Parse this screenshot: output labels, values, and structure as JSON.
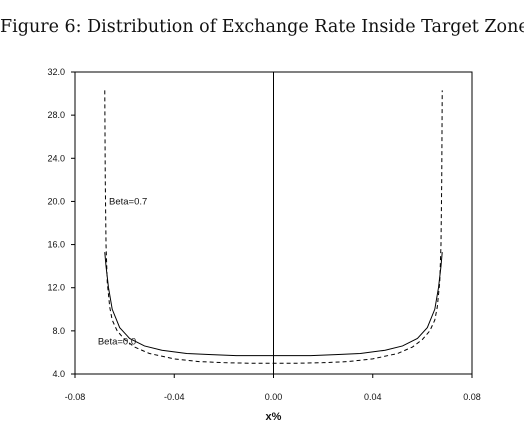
{
  "figure": {
    "title": "Figure 6: Distribution of Exchange Rate Inside Target Zone"
  },
  "chart_data": {
    "type": "line",
    "title": "Figure 6: Distribution of Exchange Rate Inside Target Zone",
    "xlabel": "x%",
    "ylabel": "",
    "xlim": [
      -0.08,
      0.08
    ],
    "ylim": [
      4.0,
      32.0
    ],
    "x_ticks": [
      "-0.08",
      "-0.04",
      "0.00",
      "0.04",
      "0.08"
    ],
    "y_ticks": [
      "4.0",
      "8.0",
      "12.0",
      "16.0",
      "20.0",
      "24.0",
      "28.0",
      "32.0"
    ],
    "grid": false,
    "vertical_reference_line_x": 0.0,
    "series": [
      {
        "name": "Beta=0.0",
        "style": "solid",
        "color": "#000000",
        "x": [
          -0.068,
          -0.0675,
          -0.0665,
          -0.065,
          -0.062,
          -0.058,
          -0.052,
          -0.045,
          -0.035,
          -0.025,
          -0.015,
          0.0,
          0.015,
          0.025,
          0.035,
          0.045,
          0.052,
          0.058,
          0.062,
          0.065,
          0.0665,
          0.0675,
          0.068
        ],
        "y": [
          15.3,
          14.0,
          12.0,
          10.0,
          8.3,
          7.3,
          6.6,
          6.2,
          5.9,
          5.8,
          5.7,
          5.7,
          5.7,
          5.8,
          5.9,
          6.2,
          6.6,
          7.3,
          8.3,
          10.0,
          12.0,
          14.0,
          15.3
        ]
      },
      {
        "name": "Beta=0.7",
        "style": "dashed",
        "color": "#000000",
        "x": [
          -0.068,
          -0.0678,
          -0.0675,
          -0.067,
          -0.066,
          -0.065,
          -0.063,
          -0.06,
          -0.056,
          -0.05,
          -0.04,
          -0.03,
          -0.02,
          -0.01,
          0.0,
          0.01,
          0.02,
          0.03,
          0.04,
          0.05,
          0.056,
          0.06,
          0.063,
          0.065,
          0.066,
          0.067,
          0.0675,
          0.0678,
          0.068
        ],
        "y": [
          30.3,
          22.0,
          16.0,
          12.5,
          10.2,
          9.0,
          8.0,
          7.2,
          6.5,
          5.9,
          5.4,
          5.15,
          5.05,
          5.0,
          5.0,
          5.0,
          5.05,
          5.15,
          5.4,
          5.9,
          6.5,
          7.2,
          8.0,
          9.0,
          10.2,
          12.5,
          16.0,
          22.0,
          30.3
        ]
      }
    ],
    "annotations": [
      {
        "text": "Beta=0.7",
        "x": -0.0675,
        "y": 20.0
      },
      {
        "text": "Beta=0.0",
        "x": -0.072,
        "y": 7.0
      }
    ]
  }
}
